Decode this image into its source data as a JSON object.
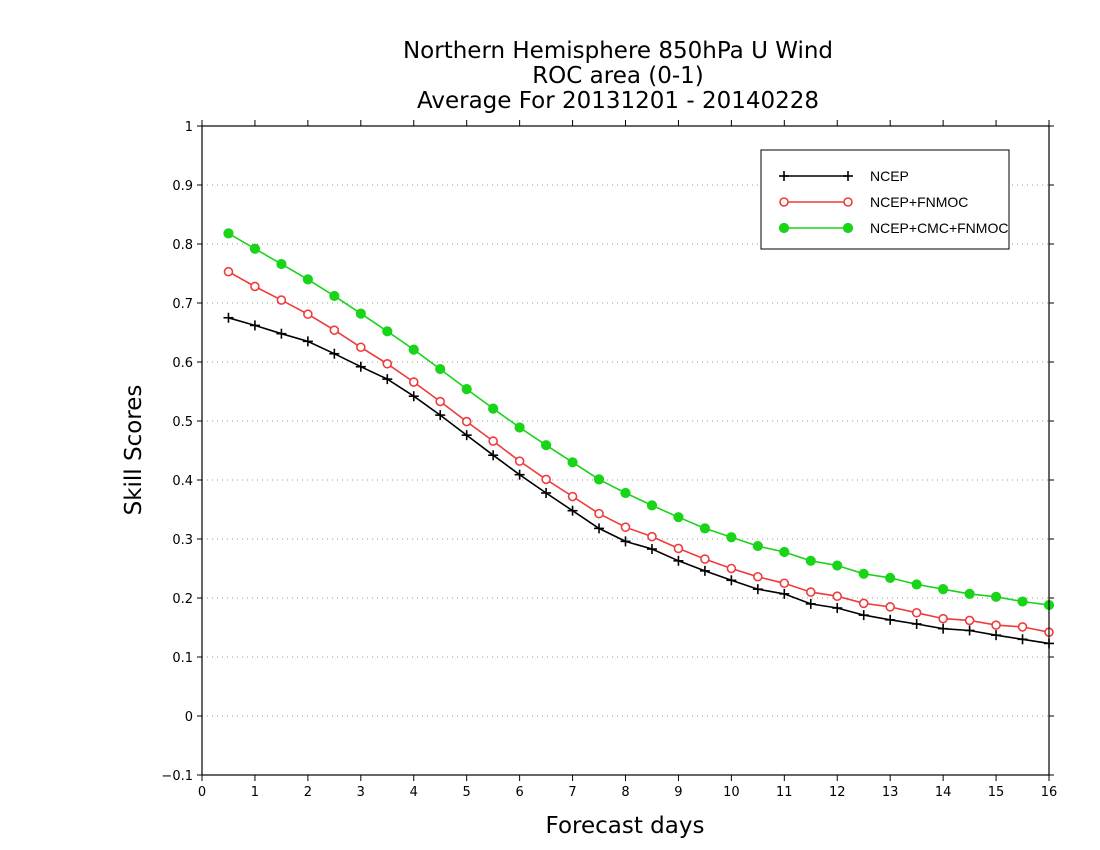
{
  "chart_data": {
    "type": "line",
    "title": [
      "Northern Hemisphere 850hPa U Wind",
      "ROC area (0-1)",
      "Average For 20131201 - 20140228"
    ],
    "xlabel": "Forecast days",
    "ylabel": "Skill Scores",
    "xlim": [
      0,
      16
    ],
    "ylim": [
      -0.1,
      1
    ],
    "x_ticks": [
      "0",
      "1",
      "2",
      "3",
      "4",
      "5",
      "6",
      "7",
      "8",
      "9",
      "10",
      "11",
      "12",
      "13",
      "14",
      "15",
      "16"
    ],
    "y_ticks": [
      "−0.1",
      "0",
      "0.1",
      "0.2",
      "0.3",
      "0.4",
      "0.5",
      "0.6",
      "0.7",
      "0.8",
      "0.9",
      "1"
    ],
    "grid": true,
    "legend_position": "top-right",
    "x": [
      0.5,
      1,
      1.5,
      2,
      2.5,
      3,
      3.5,
      4,
      4.5,
      5,
      5.5,
      6,
      6.5,
      7,
      7.5,
      8,
      8.5,
      9,
      9.5,
      10,
      10.5,
      11,
      11.5,
      12,
      12.5,
      13,
      13.5,
      14,
      14.5,
      15,
      15.5,
      16
    ],
    "series": [
      {
        "name": "NCEP",
        "color": "#000000",
        "marker": "plus",
        "values": [
          0.675,
          0.662,
          0.648,
          0.635,
          0.614,
          0.592,
          0.571,
          0.542,
          0.51,
          0.476,
          0.442,
          0.409,
          0.378,
          0.348,
          0.318,
          0.296,
          0.283,
          0.263,
          0.246,
          0.23,
          0.215,
          0.207,
          0.19,
          0.183,
          0.171,
          0.163,
          0.156,
          0.148,
          0.145,
          0.137,
          0.13,
          0.123
        ]
      },
      {
        "name": "NCEP+FNMOC",
        "color": "#ef3b3b",
        "marker": "open-circle",
        "values": [
          0.753,
          0.728,
          0.705,
          0.681,
          0.654,
          0.625,
          0.597,
          0.566,
          0.533,
          0.499,
          0.466,
          0.432,
          0.401,
          0.372,
          0.343,
          0.32,
          0.304,
          0.284,
          0.266,
          0.25,
          0.236,
          0.225,
          0.21,
          0.203,
          0.191,
          0.185,
          0.175,
          0.165,
          0.162,
          0.154,
          0.151,
          0.142
        ]
      },
      {
        "name": "NCEP+CMC+FNMOC",
        "color": "#19d419",
        "marker": "filled-circle",
        "values": [
          0.818,
          0.792,
          0.766,
          0.74,
          0.712,
          0.682,
          0.652,
          0.621,
          0.588,
          0.554,
          0.521,
          0.489,
          0.459,
          0.43,
          0.401,
          0.378,
          0.357,
          0.337,
          0.318,
          0.303,
          0.288,
          0.278,
          0.263,
          0.255,
          0.241,
          0.234,
          0.223,
          0.215,
          0.207,
          0.202,
          0.194,
          0.188
        ]
      }
    ]
  }
}
